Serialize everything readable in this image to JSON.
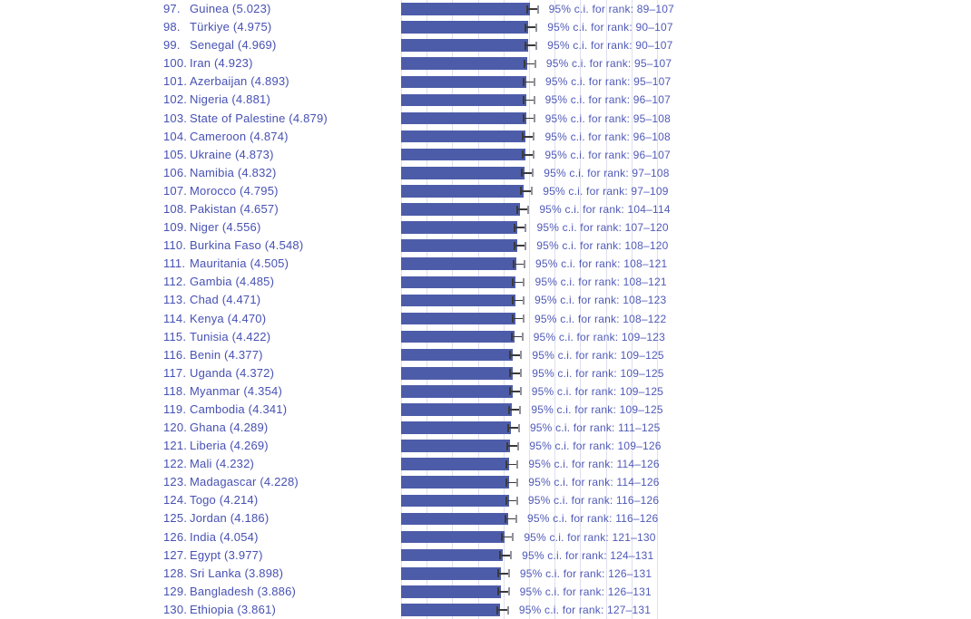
{
  "colors": {
    "background": "#ffffff",
    "bar": "#4d5ca9",
    "label_text": "#4751b3",
    "ci_text": "#505ab8",
    "gridline": "#dfdfee",
    "whisker_dark": "#3a3a3a",
    "whisker_light": "#91919d"
  },
  "chart_data": {
    "type": "bar",
    "orientation": "horizontal",
    "value_axis": {
      "min": 0,
      "max": 10,
      "gridline_interval": 1,
      "grid": true
    },
    "ci_label_format": "95% c.i. for rank: {low}–{high}",
    "rows": [
      {
        "rank": 97,
        "rank_label": "97.",
        "country": "Guinea",
        "score": 5.023,
        "country_label": "Guinea (5.023)",
        "ci_rank_low": 89,
        "ci_rank_high": 107,
        "ci_label": "95% c.i. for rank: 89–107"
      },
      {
        "rank": 98,
        "rank_label": "98.",
        "country": "Türkiye",
        "score": 4.975,
        "country_label": "Türkiye (4.975)",
        "ci_rank_low": 90,
        "ci_rank_high": 107,
        "ci_label": "95% c.i. for rank: 90–107"
      },
      {
        "rank": 99,
        "rank_label": "99.",
        "country": "Senegal",
        "score": 4.969,
        "country_label": "Senegal (4.969)",
        "ci_rank_low": 90,
        "ci_rank_high": 107,
        "ci_label": "95% c.i. for rank: 90–107"
      },
      {
        "rank": 100,
        "rank_label": "100.",
        "country": "Iran",
        "score": 4.923,
        "country_label": "Iran (4.923)",
        "ci_rank_low": 95,
        "ci_rank_high": 107,
        "ci_label": "95% c.i. for rank: 95–107"
      },
      {
        "rank": 101,
        "rank_label": "101.",
        "country": "Azerbaijan",
        "score": 4.893,
        "country_label": "Azerbaijan (4.893)",
        "ci_rank_low": 95,
        "ci_rank_high": 107,
        "ci_label": "95% c.i. for rank: 95–107"
      },
      {
        "rank": 102,
        "rank_label": "102.",
        "country": "Nigeria",
        "score": 4.881,
        "country_label": "Nigeria (4.881)",
        "ci_rank_low": 96,
        "ci_rank_high": 107,
        "ci_label": "95% c.i. for rank: 96–107"
      },
      {
        "rank": 103,
        "rank_label": "103.",
        "country": "State of Palestine",
        "score": 4.879,
        "country_label": "State of Palestine (4.879)",
        "ci_rank_low": 95,
        "ci_rank_high": 108,
        "ci_label": "95% c.i. for rank: 95–108"
      },
      {
        "rank": 104,
        "rank_label": "104.",
        "country": "Cameroon",
        "score": 4.874,
        "country_label": "Cameroon (4.874)",
        "ci_rank_low": 96,
        "ci_rank_high": 108,
        "ci_label": "95% c.i. for rank: 96–108"
      },
      {
        "rank": 105,
        "rank_label": "105.",
        "country": "Ukraine",
        "score": 4.873,
        "country_label": "Ukraine (4.873)",
        "ci_rank_low": 96,
        "ci_rank_high": 107,
        "ci_label": "95% c.i. for rank: 96–107"
      },
      {
        "rank": 106,
        "rank_label": "106.",
        "country": "Namibia",
        "score": 4.832,
        "country_label": "Namibia (4.832)",
        "ci_rank_low": 97,
        "ci_rank_high": 108,
        "ci_label": "95% c.i. for rank: 97–108"
      },
      {
        "rank": 107,
        "rank_label": "107.",
        "country": "Morocco",
        "score": 4.795,
        "country_label": "Morocco (4.795)",
        "ci_rank_low": 97,
        "ci_rank_high": 109,
        "ci_label": "95% c.i. for rank: 97–109"
      },
      {
        "rank": 108,
        "rank_label": "108.",
        "country": "Pakistan",
        "score": 4.657,
        "country_label": "Pakistan (4.657)",
        "ci_rank_low": 104,
        "ci_rank_high": 114,
        "ci_label": "95% c.i. for rank: 104–114"
      },
      {
        "rank": 109,
        "rank_label": "109.",
        "country": "Niger",
        "score": 4.556,
        "country_label": "Niger (4.556)",
        "ci_rank_low": 107,
        "ci_rank_high": 120,
        "ci_label": "95% c.i. for rank: 107–120"
      },
      {
        "rank": 110,
        "rank_label": "110.",
        "country": "Burkina Faso",
        "score": 4.548,
        "country_label": "Burkina Faso (4.548)",
        "ci_rank_low": 108,
        "ci_rank_high": 120,
        "ci_label": "95% c.i. for rank: 108–120"
      },
      {
        "rank": 111,
        "rank_label": "111.",
        "country": "Mauritania",
        "score": 4.505,
        "country_label": "Mauritania (4.505)",
        "ci_rank_low": 108,
        "ci_rank_high": 121,
        "ci_label": "95% c.i. for rank: 108–121"
      },
      {
        "rank": 112,
        "rank_label": "112.",
        "country": "Gambia",
        "score": 4.485,
        "country_label": "Gambia (4.485)",
        "ci_rank_low": 108,
        "ci_rank_high": 121,
        "ci_label": "95% c.i. for rank: 108–121"
      },
      {
        "rank": 113,
        "rank_label": "113.",
        "country": "Chad",
        "score": 4.471,
        "country_label": "Chad (4.471)",
        "ci_rank_low": 108,
        "ci_rank_high": 123,
        "ci_label": "95% c.i. for rank: 108–123"
      },
      {
        "rank": 114,
        "rank_label": "114.",
        "country": "Kenya",
        "score": 4.47,
        "country_label": "Kenya (4.470)",
        "ci_rank_low": 108,
        "ci_rank_high": 122,
        "ci_label": "95% c.i. for rank: 108–122"
      },
      {
        "rank": 115,
        "rank_label": "115.",
        "country": "Tunisia",
        "score": 4.422,
        "country_label": "Tunisia (4.422)",
        "ci_rank_low": 109,
        "ci_rank_high": 123,
        "ci_label": "95% c.i. for rank: 109–123"
      },
      {
        "rank": 116,
        "rank_label": "116.",
        "country": "Benin",
        "score": 4.377,
        "country_label": "Benin (4.377)",
        "ci_rank_low": 109,
        "ci_rank_high": 125,
        "ci_label": "95% c.i. for rank: 109–125"
      },
      {
        "rank": 117,
        "rank_label": "117.",
        "country": "Uganda",
        "score": 4.372,
        "country_label": "Uganda (4.372)",
        "ci_rank_low": 109,
        "ci_rank_high": 125,
        "ci_label": "95% c.i. for rank: 109–125"
      },
      {
        "rank": 118,
        "rank_label": "118.",
        "country": "Myanmar",
        "score": 4.354,
        "country_label": "Myanmar (4.354)",
        "ci_rank_low": 109,
        "ci_rank_high": 125,
        "ci_label": "95% c.i. for rank: 109–125"
      },
      {
        "rank": 119,
        "rank_label": "119.",
        "country": "Cambodia",
        "score": 4.341,
        "country_label": "Cambodia (4.341)",
        "ci_rank_low": 109,
        "ci_rank_high": 125,
        "ci_label": "95% c.i. for rank: 109–125"
      },
      {
        "rank": 120,
        "rank_label": "120.",
        "country": "Ghana",
        "score": 4.289,
        "country_label": "Ghana (4.289)",
        "ci_rank_low": 111,
        "ci_rank_high": 125,
        "ci_label": "95% c.i. for rank: 111–125"
      },
      {
        "rank": 121,
        "rank_label": "121.",
        "country": "Liberia",
        "score": 4.269,
        "country_label": "Liberia (4.269)",
        "ci_rank_low": 109,
        "ci_rank_high": 126,
        "ci_label": "95% c.i. for rank: 109–126"
      },
      {
        "rank": 122,
        "rank_label": "122.",
        "country": "Mali",
        "score": 4.232,
        "country_label": "Mali (4.232)",
        "ci_rank_low": 114,
        "ci_rank_high": 126,
        "ci_label": "95% c.i. for rank: 114–126"
      },
      {
        "rank": 123,
        "rank_label": "123.",
        "country": "Madagascar",
        "score": 4.228,
        "country_label": "Madagascar (4.228)",
        "ci_rank_low": 114,
        "ci_rank_high": 126,
        "ci_label": "95% c.i. for rank: 114–126"
      },
      {
        "rank": 124,
        "rank_label": "124.",
        "country": "Togo",
        "score": 4.214,
        "country_label": "Togo (4.214)",
        "ci_rank_low": 116,
        "ci_rank_high": 126,
        "ci_label": "95% c.i. for rank: 116–126"
      },
      {
        "rank": 125,
        "rank_label": "125.",
        "country": "Jordan",
        "score": 4.186,
        "country_label": "Jordan (4.186)",
        "ci_rank_low": 116,
        "ci_rank_high": 126,
        "ci_label": "95% c.i. for rank: 116–126"
      },
      {
        "rank": 126,
        "rank_label": "126.",
        "country": "India",
        "score": 4.054,
        "country_label": "India (4.054)",
        "ci_rank_low": 121,
        "ci_rank_high": 130,
        "ci_label": "95% c.i. for rank: 121–130"
      },
      {
        "rank": 127,
        "rank_label": "127.",
        "country": "Egypt",
        "score": 3.977,
        "country_label": "Egypt (3.977)",
        "ci_rank_low": 124,
        "ci_rank_high": 131,
        "ci_label": "95% c.i. for rank: 124–131"
      },
      {
        "rank": 128,
        "rank_label": "128.",
        "country": "Sri Lanka",
        "score": 3.898,
        "country_label": "Sri Lanka (3.898)",
        "ci_rank_low": 126,
        "ci_rank_high": 131,
        "ci_label": "95% c.i. for rank: 126–131"
      },
      {
        "rank": 129,
        "rank_label": "129.",
        "country": "Bangladesh",
        "score": 3.886,
        "country_label": "Bangladesh (3.886)",
        "ci_rank_low": 126,
        "ci_rank_high": 131,
        "ci_label": "95% c.i. for rank: 126–131"
      },
      {
        "rank": 130,
        "rank_label": "130.",
        "country": "Ethiopia",
        "score": 3.861,
        "country_label": "Ethiopia (3.861)",
        "ci_rank_low": 127,
        "ci_rank_high": 131,
        "ci_label": "95% c.i. for rank: 127–131"
      }
    ]
  }
}
